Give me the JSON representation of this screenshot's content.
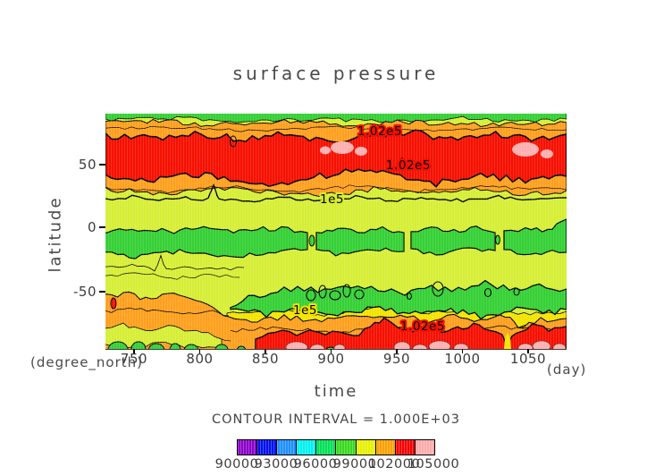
{
  "title": "surface pressure",
  "axes": {
    "y_label": "latitude",
    "y_unit": "(degree_north)",
    "x_label": "time",
    "x_unit": "(day)",
    "y_ticks": [
      "50",
      "0",
      "-50"
    ],
    "x_ticks": [
      "750",
      "800",
      "850",
      "900",
      "950",
      "1000",
      "1050"
    ]
  },
  "contour": {
    "interval_text": "CONTOUR INTERVAL  =  1.000E+03",
    "labels": {
      "north_upper": "1.02e5",
      "north_mid": "1.02e5",
      "north_1e5": "1e5",
      "south_1e5": "1e5",
      "south_upper": "1.02e5"
    }
  },
  "colorbar": {
    "tick_labels": [
      "90000",
      "93000",
      "96000",
      "99000",
      "102000",
      "105000"
    ],
    "colors": [
      "#8A00C8",
      "#0010EE",
      "#1E8FFF",
      "#00F0F0",
      "#00E055",
      "#38D81E",
      "#E6F000",
      "#FFA000",
      "#F50000",
      "#FFAAAA"
    ]
  },
  "palette": {
    "background": "#D6EE35",
    "green": "#35D035",
    "orange": "#FFA01E",
    "red": "#F61000",
    "pink": "#FFAFAF",
    "yellow": "#F2E400",
    "line": "#000000"
  },
  "chart_data": {
    "type": "heatmap",
    "title": "surface pressure",
    "xlabel": "time (day)",
    "ylabel": "latitude (degree_north)",
    "x_range": [
      728,
      1080
    ],
    "x_ticks": [
      750,
      800,
      850,
      900,
      950,
      1000,
      1050
    ],
    "y_range": [
      -94,
      90
    ],
    "y_ticks": [
      50,
      0,
      -50
    ],
    "contour_interval": 1000,
    "shade_levels": [
      90000,
      91500,
      93000,
      94500,
      96000,
      97500,
      99000,
      100500,
      102000,
      103500,
      105000
    ],
    "labeled_contours": [
      100000,
      102000
    ],
    "zonal_bands": [
      {
        "lat_range": [
          75,
          90
        ],
        "approx_pressure": [
          99000,
          100500
        ],
        "shade": "green/yellow-green"
      },
      {
        "lat_range": [
          40,
          72
        ],
        "approx_pressure": [
          102000,
          104500
        ],
        "shade": "red with pink maxima >103500"
      },
      {
        "lat_range": [
          25,
          40
        ],
        "approx_pressure": [
          100500,
          102000
        ],
        "shade": "orange"
      },
      {
        "lat_range": [
          5,
          25
        ],
        "approx_pressure": [
          99000,
          100500
        ],
        "shade": "yellow-green, 1e5 contour near 25N"
      },
      {
        "lat_range": [
          -12,
          5
        ],
        "approx_pressure": [
          97500,
          99000
        ],
        "shade": "green"
      },
      {
        "lat_range": [
          -30,
          -12
        ],
        "approx_pressure": [
          99000,
          100500
        ],
        "shade": "yellow-green"
      },
      {
        "lat_range": [
          -55,
          -30
        ],
        "approx_pressure": [
          97500,
          99000
        ],
        "shade": "green with closed low cells"
      },
      {
        "lat_range": [
          -70,
          -55
        ],
        "approx_pressure": [
          100000,
          102000
        ],
        "shade": "yellow/orange"
      },
      {
        "lat_range": [
          -94,
          -70
        ],
        "approx_pressure": [
          102000,
          104500
        ],
        "shade": "red with pink maxima near pole"
      }
    ]
  }
}
